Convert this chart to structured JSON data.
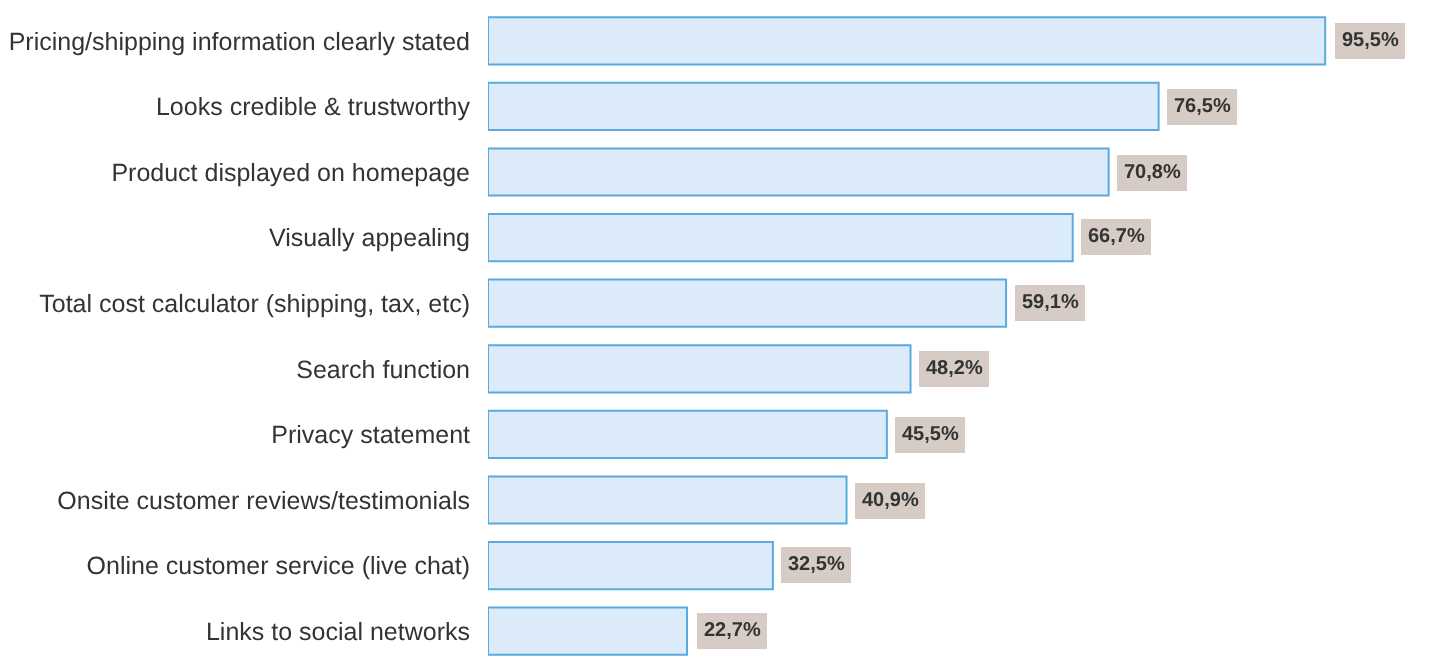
{
  "chart_data": {
    "type": "bar",
    "orientation": "horizontal",
    "categories": [
      "Pricing/shipping information clearly stated",
      "Looks credible & trustworthy",
      "Product displayed on homepage",
      "Visually appealing",
      "Total cost calculator (shipping, tax, etc)",
      "Search function",
      "Privacy statement",
      "Onsite customer reviews/testimonials",
      "Online customer service (live chat)",
      "Links to social networks"
    ],
    "values": [
      95.5,
      76.5,
      70.8,
      66.7,
      59.1,
      48.2,
      45.5,
      40.9,
      32.5,
      22.7
    ],
    "value_labels": [
      "95,5%",
      "76,5%",
      "70,8%",
      "66,7%",
      "59,1%",
      "48,2%",
      "45,5%",
      "40,9%",
      "32,5%",
      "22,7%"
    ],
    "color": "#dcebfa"
  }
}
